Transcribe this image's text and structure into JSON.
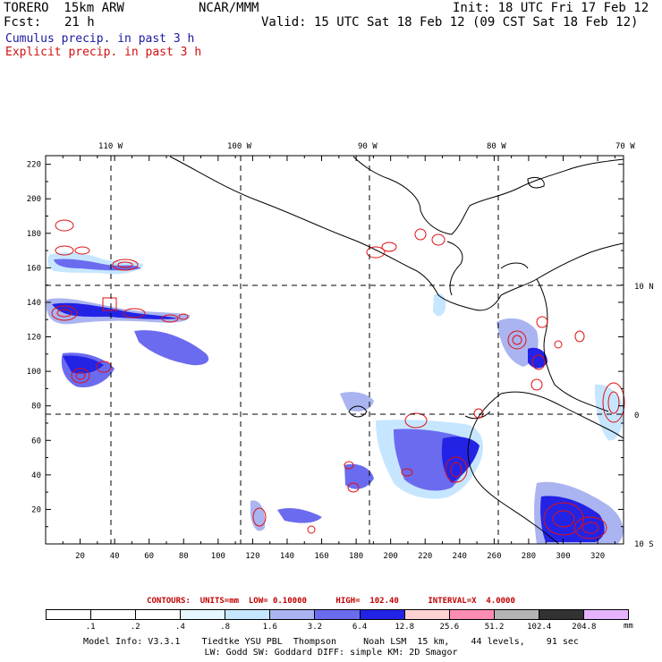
{
  "header": {
    "model_name": "TORERO  15km ARW",
    "center": "NCAR/MMM",
    "init": "Init: 18 UTC Fri 17 Feb 12",
    "fcst_label": "Fcst:",
    "fcst_value": "21 h",
    "valid": "Valid: 15 UTC Sat 18 Feb 12 (09 CST Sat 18 Feb 12)",
    "field1": "Cumulus precip. in past 3 h",
    "field2": "Explicit precip. in past 3 h"
  },
  "map": {
    "lon_labels": [
      "110 W",
      "100 W",
      "90 W",
      "80 W",
      "70 W"
    ],
    "lat_labels": [
      "10 N",
      "0",
      "10 S"
    ],
    "x_ticks": [
      "20",
      "40",
      "60",
      "80",
      "100",
      "120",
      "140",
      "160",
      "180",
      "200",
      "220",
      "240",
      "260",
      "280",
      "300",
      "320"
    ],
    "y_ticks": [
      "20",
      "40",
      "60",
      "80",
      "100",
      "120",
      "140",
      "160",
      "180",
      "200",
      "220"
    ],
    "grid_x": [
      20,
      40,
      60,
      80,
      100,
      120,
      140,
      160,
      180,
      200,
      220,
      240,
      260,
      280,
      300,
      320
    ],
    "grid_y": [
      20,
      40,
      60,
      80,
      100,
      120,
      140,
      160,
      180,
      200,
      220
    ],
    "x_range": [
      0,
      335
    ],
    "y_range": [
      0,
      225
    ]
  },
  "contours": {
    "text": "CONTOURS:  UNITS=mm  LOW= 0.10000      HIGH=  102.40      INTERVAL=X  4.0000"
  },
  "colorbar": {
    "levels": [
      ".1",
      ".2",
      ".4",
      ".8",
      "1.6",
      "3.2",
      "6.4",
      "12.8",
      "25.6",
      "51.2",
      "102.4",
      "204.8"
    ],
    "colors": [
      "#ffffff",
      "#ffffff",
      "#ffffff",
      "#e6f7ff",
      "#c6e6ff",
      "#aab4f0",
      "#6b6bf0",
      "#2323e6",
      "#ffd2d2",
      "#ff8cb4",
      "#b4b4b4",
      "#323232",
      "#e6b4ff"
    ],
    "units": "mm"
  },
  "model_info": {
    "line1": "Model Info: V3.3.1    Tiedtke YSU PBL  Thompson     Noah LSM  15 km,    44 levels,    91 sec",
    "line2": "LW: Godd SW: Goddard DIFF: simple KM: 2D Smagor"
  }
}
